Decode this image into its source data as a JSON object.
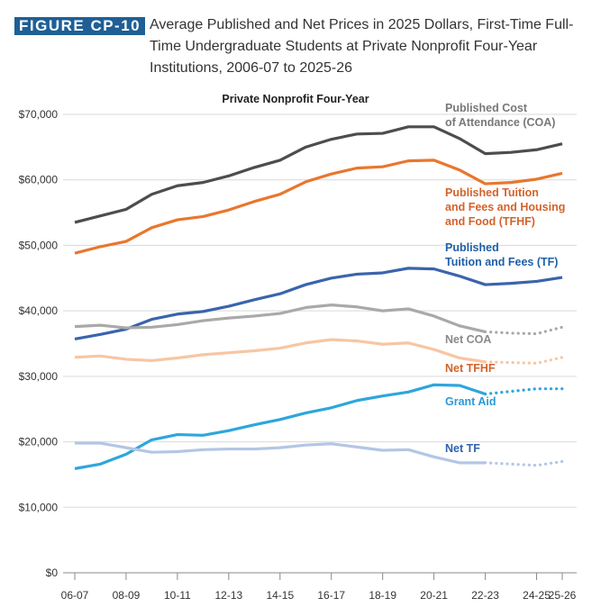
{
  "figure_label": "FIGURE CP-10",
  "figure_title": "Average Published and Net Prices in 2025 Dollars, First-Time Full-Time Undergraduate Students at Private Nonprofit Four-Year Institutions, 2006-07 to 2025-26",
  "chart_data": {
    "type": "line",
    "title": "Private Nonprofit Four-Year",
    "xlabel": "",
    "ylabel": "",
    "ylim": [
      0,
      70000
    ],
    "yticks": [
      "$0",
      "$10,000",
      "$20,000",
      "$30,000",
      "$40,000",
      "$50,000",
      "$60,000",
      "$70,000"
    ],
    "x": [
      "06-07",
      "07-08",
      "08-09",
      "09-10",
      "10-11",
      "11-12",
      "12-13",
      "13-14",
      "14-15",
      "15-16",
      "16-17",
      "17-18",
      "18-19",
      "19-20",
      "20-21",
      "21-22",
      "22-23",
      "23-24",
      "24-25",
      "25-26"
    ],
    "xtick_labels": [
      "06-07",
      "08-09",
      "10-11",
      "12-13",
      "14-15",
      "16-17",
      "18-19",
      "20-21",
      "22-23",
      "24-25",
      "25-26"
    ],
    "projected_from_index": 16,
    "grid": false,
    "series": [
      {
        "name": "Published Cost of Attendance (COA)",
        "label_lines": [
          "Published Cost",
          "of Attendance (COA)"
        ],
        "color": "#4d4d4f",
        "label_color": "#77787b",
        "dotted_projection": false,
        "values": [
          53500,
          54500,
          55500,
          57800,
          59100,
          59600,
          60600,
          61900,
          63000,
          65000,
          66200,
          67000,
          67100,
          68100,
          68100,
          66300,
          64000,
          64200,
          64600,
          65500
        ]
      },
      {
        "name": "Published Tuition and Fees and Housing and Food (TFHF)",
        "label_lines": [
          "Published Tuition",
          "and Fees and Housing",
          "and Food (TFHF)"
        ],
        "color": "#e8772e",
        "label_color": "#d4622a",
        "dotted_projection": false,
        "values": [
          48800,
          49800,
          50600,
          52700,
          53900,
          54400,
          55400,
          56700,
          57800,
          59700,
          60900,
          61800,
          62000,
          62900,
          63000,
          61500,
          59400,
          59600,
          60100,
          61000
        ]
      },
      {
        "name": "Published Tuition and Fees (TF)",
        "label_lines": [
          "Published",
          "Tuition and Fees (TF)"
        ],
        "color": "#3a64ad",
        "label_color": "#1f5fa8",
        "dotted_projection": false,
        "values": [
          35700,
          36400,
          37200,
          38700,
          39500,
          39900,
          40700,
          41700,
          42600,
          44000,
          45000,
          45600,
          45800,
          46500,
          46400,
          45300,
          44000,
          44200,
          44500,
          45100
        ]
      },
      {
        "name": "Net COA",
        "label_lines": [
          "Net COA"
        ],
        "color": "#a9a9a9",
        "label_color": "#8a8a8c",
        "dotted_projection": true,
        "values": [
          37600,
          37800,
          37400,
          37500,
          37900,
          38500,
          38900,
          39200,
          39600,
          40500,
          40900,
          40600,
          40000,
          40300,
          39200,
          37700,
          36800,
          36600,
          36500,
          37500
        ]
      },
      {
        "name": "Net TFHF",
        "label_lines": [
          "Net TFHF"
        ],
        "color": "#f7c6a3",
        "label_color": "#d4622a",
        "dotted_projection": true,
        "values": [
          32900,
          33100,
          32600,
          32400,
          32800,
          33300,
          33600,
          33900,
          34300,
          35100,
          35600,
          35400,
          34900,
          35100,
          34100,
          32800,
          32200,
          32100,
          32000,
          32900
        ]
      },
      {
        "name": "Grant Aid",
        "label_lines": [
          "Grant Aid"
        ],
        "color": "#2ea6dc",
        "label_color": "#2b9ad6",
        "dotted_projection": true,
        "values": [
          15900,
          16600,
          18100,
          20300,
          21100,
          21000,
          21700,
          22600,
          23400,
          24400,
          25200,
          26300,
          27000,
          27600,
          28700,
          28600,
          27300,
          27700,
          28100,
          28100
        ]
      },
      {
        "name": "Net TF",
        "label_lines": [
          "Net TF"
        ],
        "color": "#b3c6e5",
        "label_color": "#2f62ad",
        "dotted_projection": true,
        "values": [
          19800,
          19800,
          19100,
          18400,
          18500,
          18800,
          18900,
          18900,
          19100,
          19500,
          19700,
          19200,
          18700,
          18800,
          17700,
          16800,
          16800,
          16600,
          16400,
          17000
        ]
      }
    ]
  }
}
